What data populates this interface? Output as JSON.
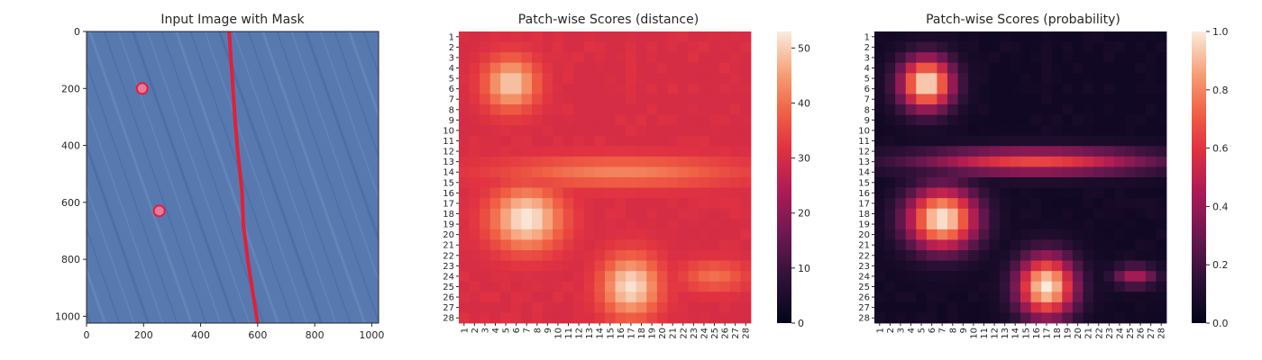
{
  "chart_data": [
    {
      "type": "image",
      "title": "Input Image with Mask",
      "x_ticks": [
        "0",
        "200",
        "400",
        "600",
        "800",
        "1000"
      ],
      "y_ticks": [
        "0",
        "200",
        "400",
        "600",
        "800",
        "1000"
      ],
      "xlim": [
        0,
        1024
      ],
      "ylim": [
        1024,
        0
      ],
      "mask_color": "#e0203a",
      "background_color": "#5879b0",
      "mask_line_points": [
        [
          500,
          0
        ],
        [
          510,
          150
        ],
        [
          520,
          300
        ],
        [
          530,
          420
        ],
        [
          545,
          560
        ],
        [
          550,
          680
        ],
        [
          565,
          800
        ],
        [
          585,
          930
        ],
        [
          600,
          1024
        ]
      ],
      "mask_spots": [
        [
          195,
          200
        ],
        [
          255,
          630
        ]
      ]
    },
    {
      "type": "heatmap",
      "title": "Patch-wise Scores (distance)",
      "x_labels": [
        "1",
        "2",
        "3",
        "4",
        "5",
        "6",
        "7",
        "8",
        "9",
        "10",
        "11",
        "12",
        "13",
        "14",
        "15",
        "16",
        "17",
        "18",
        "19",
        "20",
        "21",
        "22",
        "23",
        "24",
        "25",
        "26",
        "27",
        "28"
      ],
      "y_labels": [
        "1",
        "2",
        "3",
        "4",
        "5",
        "6",
        "7",
        "8",
        "9",
        "10",
        "11",
        "12",
        "13",
        "14",
        "15",
        "16",
        "17",
        "18",
        "19",
        "20",
        "21",
        "22",
        "23",
        "24",
        "25",
        "26",
        "27",
        "28"
      ],
      "colorbar_ticks": [
        "0",
        "10",
        "20",
        "30",
        "40",
        "50"
      ],
      "vmin": 0,
      "vmax": 53,
      "colormap": "rocket",
      "base_value": 30,
      "blobs": [
        {
          "row": 5.5,
          "col": 5.5,
          "rx": 2.4,
          "ry": 2.4,
          "peak": 50
        },
        {
          "row": 18.5,
          "col": 7,
          "rx": 2.8,
          "ry": 3.2,
          "peak": 53
        },
        {
          "row": 25,
          "col": 17,
          "rx": 2.8,
          "ry": 2.6,
          "peak": 52
        },
        {
          "row": 14,
          "col": 16,
          "rx": 1.4,
          "ry": 11,
          "peak": 42
        },
        {
          "row": 24,
          "col": 25,
          "rx": 1.4,
          "ry": 3,
          "peak": 40
        }
      ]
    },
    {
      "type": "heatmap",
      "title": "Patch-wise Scores (probability)",
      "x_labels": [
        "1",
        "2",
        "3",
        "4",
        "5",
        "6",
        "7",
        "8",
        "9",
        "10",
        "11",
        "12",
        "13",
        "14",
        "15",
        "16",
        "17",
        "18",
        "19",
        "20",
        "21",
        "22",
        "23",
        "24",
        "25",
        "26",
        "27",
        "28"
      ],
      "y_labels": [
        "1",
        "2",
        "3",
        "4",
        "5",
        "6",
        "7",
        "8",
        "9",
        "10",
        "11",
        "12",
        "13",
        "14",
        "15",
        "16",
        "17",
        "18",
        "19",
        "20",
        "21",
        "22",
        "23",
        "24",
        "25",
        "26",
        "27",
        "28"
      ],
      "colorbar_ticks": [
        "0.0",
        "0.2",
        "0.4",
        "0.6",
        "0.8",
        "1.0"
      ],
      "vmin": 0,
      "vmax": 1,
      "colormap": "rocket",
      "base_value": 0.05,
      "blobs": [
        {
          "row": 5.5,
          "col": 5.5,
          "rx": 2.4,
          "ry": 2.4,
          "peak": 1.0
        },
        {
          "row": 18.5,
          "col": 7,
          "rx": 2.8,
          "ry": 3.2,
          "peak": 1.0
        },
        {
          "row": 25,
          "col": 17,
          "rx": 2.8,
          "ry": 2.6,
          "peak": 1.0
        },
        {
          "row": 13,
          "col": 16,
          "rx": 1.2,
          "ry": 11,
          "peak": 0.65
        },
        {
          "row": 24,
          "col": 25.5,
          "rx": 1.0,
          "ry": 2.0,
          "peak": 0.45
        }
      ]
    }
  ]
}
